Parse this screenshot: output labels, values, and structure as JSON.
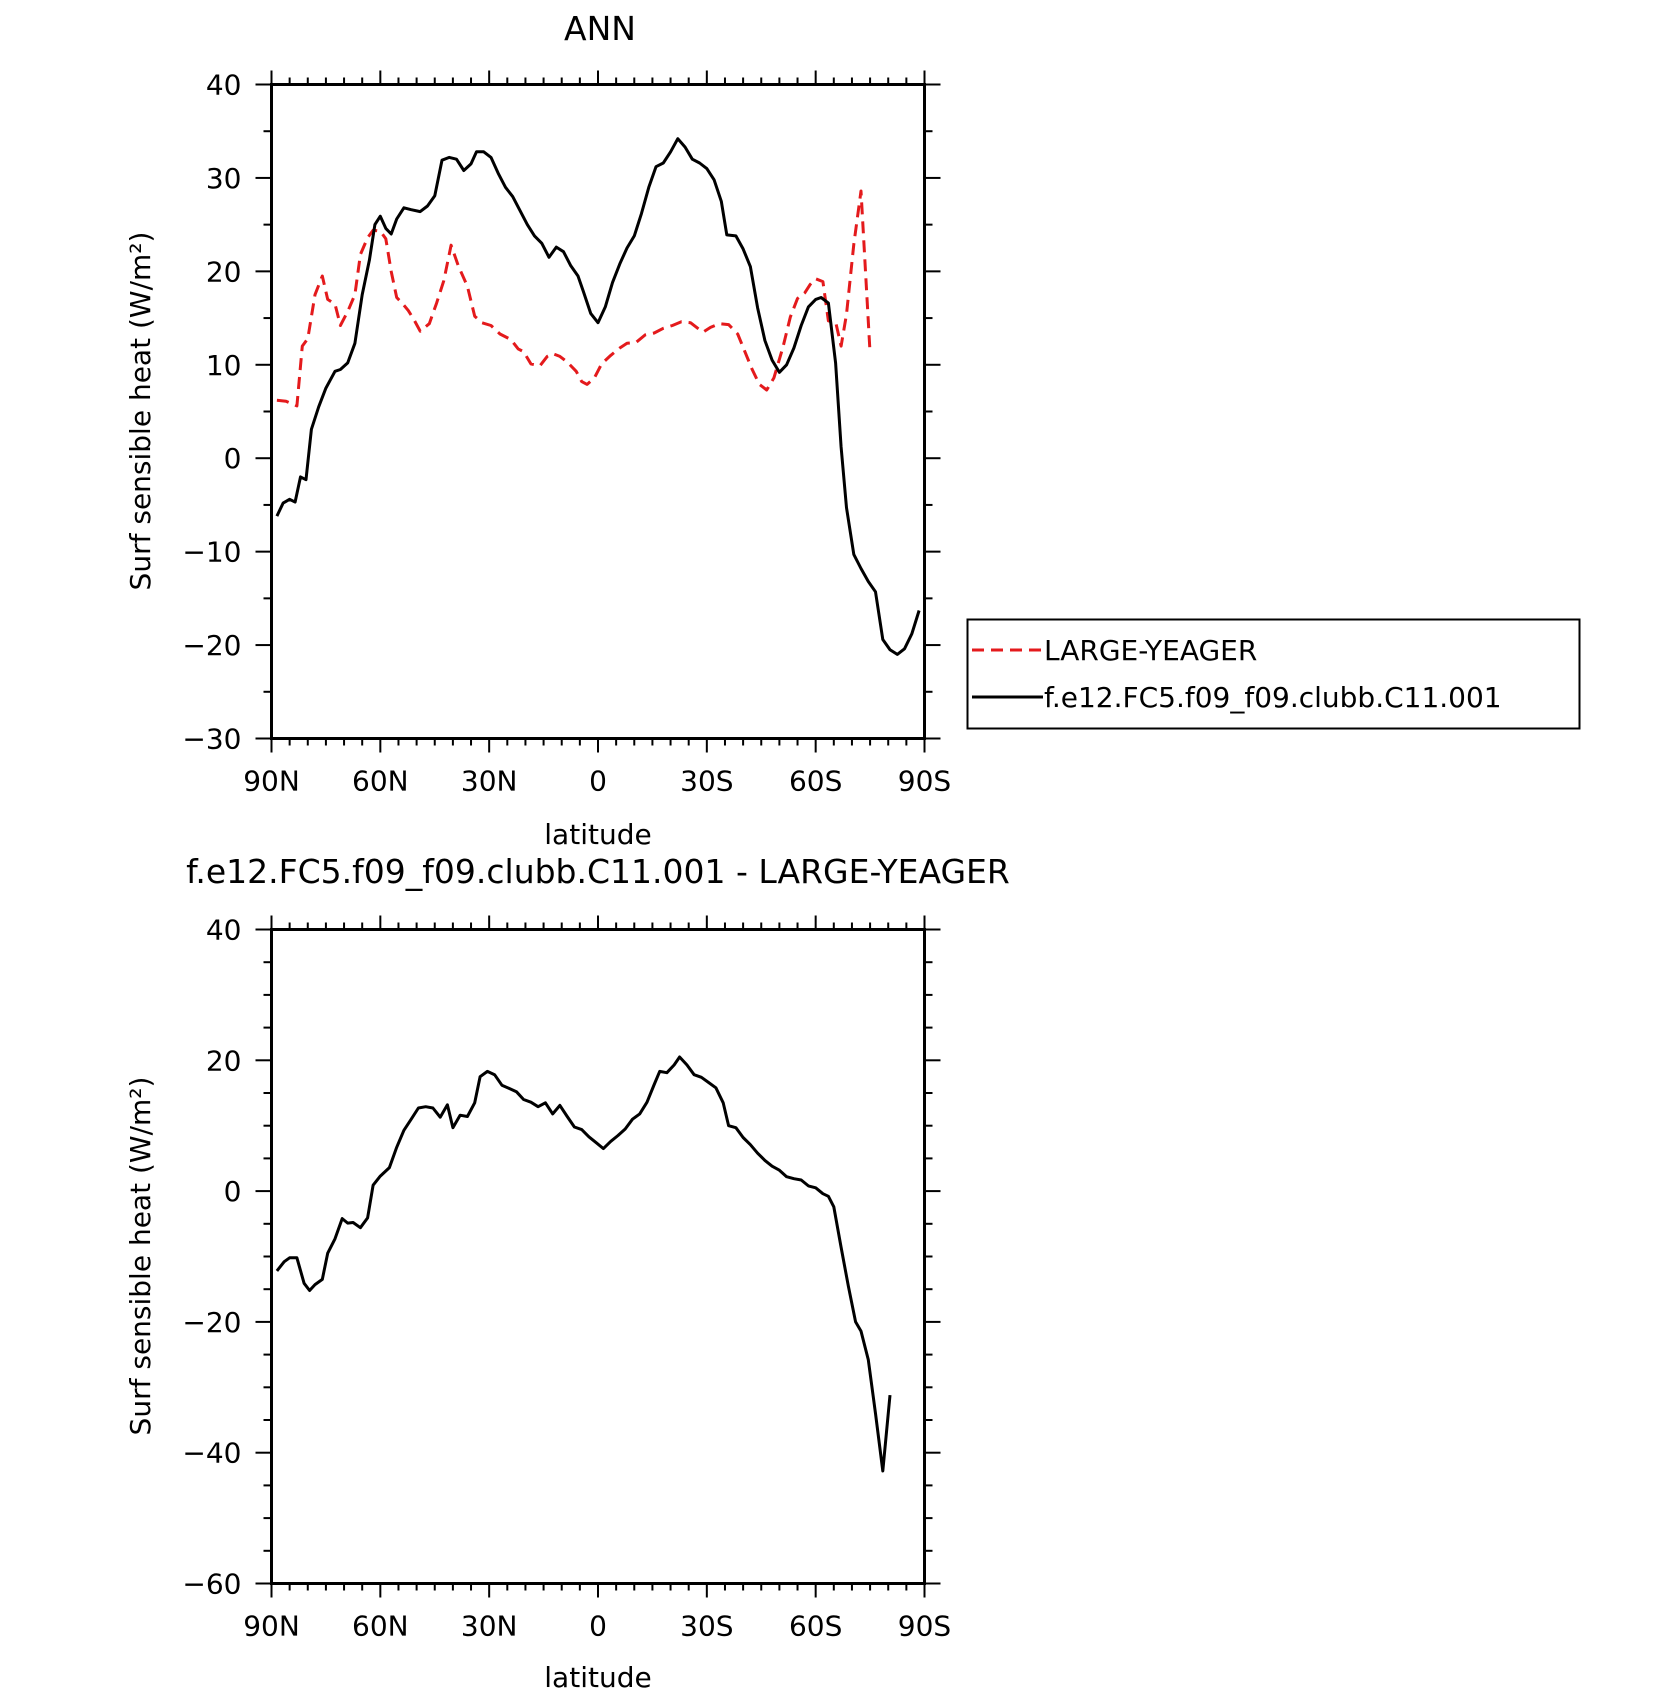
{
  "chart_data": [
    {
      "type": "line",
      "title": "ANN",
      "xlabel": "latitude",
      "ylabel": "Surf sensible heat (W/m²)",
      "xlim": [
        90,
        -90
      ],
      "ylim": [
        -30,
        40
      ],
      "x_ticks": [
        {
          "value": 90,
          "label": "90N"
        },
        {
          "value": 60,
          "label": "60N"
        },
        {
          "value": 30,
          "label": "30N"
        },
        {
          "value": 0,
          "label": "0"
        },
        {
          "value": -30,
          "label": "30S"
        },
        {
          "value": -60,
          "label": "60S"
        },
        {
          "value": -90,
          "label": "90S"
        }
      ],
      "y_ticks": [
        40,
        30,
        20,
        10,
        0,
        -10,
        -20,
        -30
      ],
      "legend": "right",
      "series": [
        {
          "name": "LARGE-YEAGER",
          "color": "#e41a1c",
          "dash": "dashed",
          "points": [
            [
              88.5,
              6.2
            ],
            [
              86,
              6.1
            ],
            [
              83,
              5.6
            ],
            [
              81.5,
              12
            ],
            [
              80,
              12.8
            ],
            [
              78,
              17.5
            ],
            [
              76,
              19.5
            ],
            [
              74.5,
              17
            ],
            [
              72.5,
              16.5
            ],
            [
              71,
              14.2
            ],
            [
              69,
              15.7
            ],
            [
              67,
              17.5
            ],
            [
              65.5,
              21.8
            ],
            [
              63.5,
              23.6
            ],
            [
              62,
              24.4
            ],
            [
              60,
              24.3
            ],
            [
              58.5,
              23.5
            ],
            [
              57,
              20
            ],
            [
              55.5,
              17.2
            ],
            [
              54,
              16.6
            ],
            [
              52.3,
              15.8
            ],
            [
              50.7,
              14.8
            ],
            [
              49,
              13.6
            ],
            [
              46.5,
              14.4
            ],
            [
              44.5,
              16.6
            ],
            [
              42.5,
              19
            ],
            [
              40.5,
              22.8
            ],
            [
              38.5,
              20.6
            ],
            [
              36,
              18.4
            ],
            [
              34,
              15.2
            ],
            [
              32,
              14.5
            ],
            [
              29.5,
              14.2
            ],
            [
              27,
              13.3
            ],
            [
              24,
              12.7
            ],
            [
              22,
              11.7
            ],
            [
              20.5,
              11.4
            ],
            [
              18.5,
              10.1
            ],
            [
              16,
              9.9
            ],
            [
              14,
              10.9
            ],
            [
              12.5,
              11.2
            ],
            [
              10.5,
              10.9
            ],
            [
              8.5,
              10.3
            ],
            [
              6,
              9.3
            ],
            [
              4.5,
              8.2
            ],
            [
              3,
              7.9
            ],
            [
              1,
              8.6
            ],
            [
              -1,
              10.1
            ],
            [
              -3.5,
              11
            ],
            [
              -6,
              11.8
            ],
            [
              -8,
              12.3
            ],
            [
              -10.5,
              12.4
            ],
            [
              -13,
              13.2
            ],
            [
              -15.5,
              13.4
            ],
            [
              -18,
              13.9
            ],
            [
              -20.5,
              14.2
            ],
            [
              -23,
              14.6
            ],
            [
              -25.5,
              14.5
            ],
            [
              -27.5,
              13.9
            ],
            [
              -29,
              13.5
            ],
            [
              -31,
              14
            ],
            [
              -33.5,
              14.4
            ],
            [
              -36,
              14.3
            ],
            [
              -38.5,
              13.3
            ],
            [
              -40.5,
              11.4
            ],
            [
              -42.5,
              9.5
            ],
            [
              -44.5,
              7.9
            ],
            [
              -46.5,
              7.3
            ],
            [
              -48.5,
              8.6
            ],
            [
              -51,
              11.9
            ],
            [
              -53,
              15.1
            ],
            [
              -55,
              17.1
            ],
            [
              -57,
              17.7
            ],
            [
              -58.5,
              18.6
            ],
            [
              -60,
              19.2
            ],
            [
              -62,
              18.9
            ],
            [
              -63.5,
              14.7
            ],
            [
              -65.5,
              14.6
            ],
            [
              -67,
              12
            ],
            [
              -68.5,
              15.4
            ],
            [
              -70.5,
              22.9
            ],
            [
              -72.5,
              28.6
            ],
            [
              -75,
              11.2
            ]
          ]
        },
        {
          "name": "f.e12.FC5.f09_f09.clubb.C11.001",
          "color": "#000000",
          "dash": "solid",
          "points": [
            [
              88.5,
              -6.2
            ],
            [
              86.8,
              -4.8
            ],
            [
              85,
              -4.4
            ],
            [
              83.5,
              -4.7
            ],
            [
              82,
              -2
            ],
            [
              80.5,
              -2.3
            ],
            [
              79,
              3.1
            ],
            [
              77,
              5.5
            ],
            [
              75,
              7.5
            ],
            [
              72.5,
              9.3
            ],
            [
              71,
              9.5
            ],
            [
              69,
              10.2
            ],
            [
              67,
              12.3
            ],
            [
              65,
              17.5
            ],
            [
              63,
              21.2
            ],
            [
              61.5,
              25
            ],
            [
              60,
              25.9
            ],
            [
              58.5,
              24.6
            ],
            [
              57,
              24
            ],
            [
              55.5,
              25.6
            ],
            [
              53.5,
              26.8
            ],
            [
              51.5,
              26.6
            ],
            [
              49,
              26.4
            ],
            [
              47,
              27
            ],
            [
              45,
              28.1
            ],
            [
              43,
              31.9
            ],
            [
              41,
              32.2
            ],
            [
              39,
              32
            ],
            [
              37,
              30.8
            ],
            [
              35,
              31.5
            ],
            [
              33.5,
              32.8
            ],
            [
              31.5,
              32.8
            ],
            [
              29.5,
              32.2
            ],
            [
              27.5,
              30.5
            ],
            [
              25.5,
              29
            ],
            [
              23.5,
              28
            ],
            [
              21.5,
              26.5
            ],
            [
              19.5,
              25
            ],
            [
              17.5,
              23.8
            ],
            [
              15.5,
              23
            ],
            [
              13.5,
              21.5
            ],
            [
              11.5,
              22.6
            ],
            [
              9.5,
              22.1
            ],
            [
              7.5,
              20.6
            ],
            [
              5.5,
              19.5
            ],
            [
              4,
              17.8
            ],
            [
              2,
              15.5
            ],
            [
              0,
              14.5
            ],
            [
              -2,
              16.2
            ],
            [
              -4,
              18.8
            ],
            [
              -6,
              20.8
            ],
            [
              -8,
              22.5
            ],
            [
              -10,
              23.8
            ],
            [
              -12,
              26.2
            ],
            [
              -14,
              29
            ],
            [
              -16,
              31.2
            ],
            [
              -18,
              31.6
            ],
            [
              -20,
              32.8
            ],
            [
              -22,
              34.2
            ],
            [
              -24,
              33.3
            ],
            [
              -26,
              32
            ],
            [
              -28,
              31.6
            ],
            [
              -30,
              31
            ],
            [
              -32,
              29.8
            ],
            [
              -34,
              27.5
            ],
            [
              -35.5,
              23.9
            ],
            [
              -38,
              23.8
            ],
            [
              -40,
              22.4
            ],
            [
              -42,
              20.5
            ],
            [
              -44,
              16.1
            ],
            [
              -46,
              12.6
            ],
            [
              -48,
              10.5
            ],
            [
              -50,
              9.2
            ],
            [
              -52,
              10
            ],
            [
              -54,
              11.8
            ],
            [
              -56,
              14.2
            ],
            [
              -58,
              16.2
            ],
            [
              -60,
              17
            ],
            [
              -61.5,
              17.2
            ],
            [
              -63.5,
              16.6
            ],
            [
              -65.5,
              10.2
            ],
            [
              -67,
              1.2
            ],
            [
              -68.5,
              -5.3
            ],
            [
              -70.5,
              -10.3
            ],
            [
              -72.5,
              -11.8
            ],
            [
              -74.5,
              -13.2
            ],
            [
              -76.5,
              -14.3
            ],
            [
              -78.5,
              -19.4
            ],
            [
              -80.5,
              -20.5
            ],
            [
              -82.5,
              -21
            ],
            [
              -84.5,
              -20.4
            ],
            [
              -86.5,
              -18.8
            ],
            [
              -88.5,
              -16.3
            ]
          ]
        }
      ]
    },
    {
      "type": "line",
      "title": "f.e12.FC5.f09_f09.clubb.C11.001 - LARGE-YEAGER",
      "xlabel": "latitude",
      "ylabel": "Surf sensible heat (W/m²)",
      "xlim": [
        90,
        -90
      ],
      "ylim": [
        -60,
        40
      ],
      "x_ticks": [
        {
          "value": 90,
          "label": "90N"
        },
        {
          "value": 60,
          "label": "60N"
        },
        {
          "value": 30,
          "label": "30N"
        },
        {
          "value": 0,
          "label": "0"
        },
        {
          "value": -30,
          "label": "30S"
        },
        {
          "value": -60,
          "label": "60S"
        },
        {
          "value": -90,
          "label": "90S"
        }
      ],
      "y_ticks": [
        40,
        20,
        0,
        -20,
        -40,
        -60
      ],
      "series": [
        {
          "color": "#000000",
          "dash": "solid",
          "points": [
            [
              88.5,
              -12.2
            ],
            [
              86.5,
              -10.8
            ],
            [
              85,
              -10.2
            ],
            [
              83,
              -10.2
            ],
            [
              81,
              -14.1
            ],
            [
              79.5,
              -15.2
            ],
            [
              78,
              -14.3
            ],
            [
              76,
              -13.5
            ],
            [
              74.5,
              -9.5
            ],
            [
              72.5,
              -7.3
            ],
            [
              70.5,
              -4.2
            ],
            [
              69,
              -4.9
            ],
            [
              67.5,
              -4.8
            ],
            [
              65.5,
              -5.6
            ],
            [
              63.5,
              -4.1
            ],
            [
              62,
              0.9
            ],
            [
              60,
              2.3
            ],
            [
              57.5,
              3.6
            ],
            [
              55.5,
              6.7
            ],
            [
              53.5,
              9.3
            ],
            [
              51.5,
              11
            ],
            [
              49.5,
              12.7
            ],
            [
              47.5,
              12.9
            ],
            [
              45.5,
              12.7
            ],
            [
              43.5,
              11.3
            ],
            [
              41.5,
              13.2
            ],
            [
              40,
              9.7
            ],
            [
              38,
              11.6
            ],
            [
              36,
              11.4
            ],
            [
              34,
              13.5
            ],
            [
              32.5,
              17.5
            ],
            [
              30.5,
              18.3
            ],
            [
              28.5,
              17.8
            ],
            [
              26.5,
              16.2
            ],
            [
              24.5,
              15.7
            ],
            [
              22.5,
              15.2
            ],
            [
              20.5,
              14
            ],
            [
              18.5,
              13.6
            ],
            [
              16.5,
              12.9
            ],
            [
              14.5,
              13.5
            ],
            [
              12.5,
              11.8
            ],
            [
              10.5,
              13.1
            ],
            [
              8.5,
              11.4
            ],
            [
              6.5,
              9.8
            ],
            [
              4.5,
              9.4
            ],
            [
              2.5,
              8.3
            ],
            [
              0.5,
              7.4
            ],
            [
              -1.5,
              6.5
            ],
            [
              -3.5,
              7.6
            ],
            [
              -5.5,
              8.5
            ],
            [
              -7.5,
              9.5
            ],
            [
              -9.5,
              11
            ],
            [
              -11.5,
              11.8
            ],
            [
              -13.5,
              13.6
            ],
            [
              -15.5,
              16.3
            ],
            [
              -17,
              18.3
            ],
            [
              -19,
              18.1
            ],
            [
              -21,
              19.3
            ],
            [
              -22.5,
              20.5
            ],
            [
              -24.5,
              19.3
            ],
            [
              -26.5,
              17.8
            ],
            [
              -28.5,
              17.4
            ],
            [
              -30.5,
              16.6
            ],
            [
              -32.5,
              15.8
            ],
            [
              -34.5,
              13.5
            ],
            [
              -36,
              10
            ],
            [
              -38,
              9.7
            ],
            [
              -40,
              8.2
            ],
            [
              -42,
              7.1
            ],
            [
              -44,
              5.8
            ],
            [
              -46,
              4.7
            ],
            [
              -48,
              3.8
            ],
            [
              -50,
              3.2
            ],
            [
              -52,
              2.2
            ],
            [
              -54,
              1.9
            ],
            [
              -56,
              1.7
            ],
            [
              -58,
              0.8
            ],
            [
              -60,
              0.5
            ],
            [
              -62,
              -0.4
            ],
            [
              -63.5,
              -0.8
            ],
            [
              -65,
              -2.4
            ],
            [
              -67,
              -8.6
            ],
            [
              -69,
              -14.5
            ],
            [
              -71,
              -20
            ],
            [
              -72.5,
              -21.4
            ],
            [
              -74.5,
              -25.8
            ],
            [
              -76.5,
              -34
            ],
            [
              -78.5,
              -42.8
            ],
            [
              -80.5,
              -31.2
            ]
          ]
        }
      ]
    }
  ]
}
